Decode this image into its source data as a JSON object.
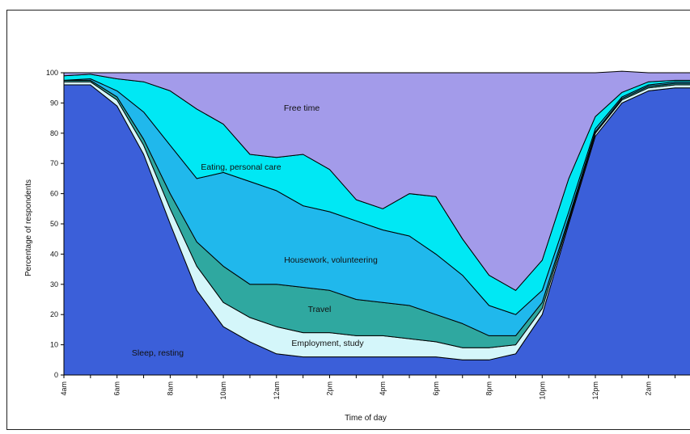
{
  "chart_data": {
    "type": "area",
    "stacked": true,
    "xlabel": "Time of day",
    "ylabel": "Percentage of respondents",
    "ylim": [
      0,
      100
    ],
    "yticks": [
      0,
      10,
      20,
      30,
      40,
      50,
      60,
      70,
      80,
      90,
      100
    ],
    "x_hours": [
      "4am",
      "5am",
      "6am",
      "7am",
      "8am",
      "9am",
      "10am",
      "11am",
      "12am",
      "1pm",
      "2pm",
      "3pm",
      "4pm",
      "5pm",
      "6pm",
      "7pm",
      "8pm",
      "9pm",
      "10pm",
      "11pm",
      "12pm",
      "1am",
      "2am",
      "3am",
      "3:30am"
    ],
    "xtick_labels": [
      "4am",
      "6am",
      "8am",
      "10am",
      "12am",
      "2pm",
      "4pm",
      "6pm",
      "8pm",
      "10pm",
      "12pm",
      "2am"
    ],
    "series": [
      {
        "name": "Sleep, resting",
        "color": "#3b5fd9",
        "values": [
          96,
          96,
          89,
          73,
          50,
          28,
          16,
          11,
          7,
          6,
          6,
          6,
          6,
          6,
          6,
          5,
          5,
          7,
          20,
          50,
          79,
          90,
          94,
          95,
          95
        ]
      },
      {
        "name": "Employment, study",
        "color": "#d4f6fa",
        "values": [
          1,
          1,
          2,
          3,
          5,
          8,
          8,
          8,
          9,
          8,
          8,
          7,
          7,
          6,
          5,
          4,
          4,
          3,
          2,
          1,
          1,
          1,
          1,
          1,
          1
        ]
      },
      {
        "name": "Travel",
        "color": "#2fa8a0",
        "values": [
          0.5,
          0.5,
          1,
          2,
          5,
          8,
          12,
          11,
          14,
          15,
          14,
          12,
          11,
          11,
          9,
          8,
          4,
          3,
          2,
          1,
          0.5,
          0.5,
          0.5,
          0.5,
          0.5
        ]
      },
      {
        "name": "Housework, volunteering",
        "color": "#20b8ec",
        "values": [
          0,
          0.5,
          2,
          9,
          16,
          21,
          31,
          34,
          31,
          27,
          26,
          26,
          24,
          23,
          20,
          16,
          10,
          7,
          4,
          2,
          1,
          0.5,
          0.5,
          0.5,
          0.5
        ]
      },
      {
        "name": "Eating, personal care",
        "color": "#00e8f4",
        "values": [
          1.5,
          1.5,
          4,
          10,
          18,
          23,
          16,
          9,
          11,
          17,
          14,
          7,
          7,
          14,
          19,
          12,
          10,
          8,
          10,
          11,
          4,
          1.5,
          1,
          0.5,
          0.5
        ]
      },
      {
        "name": "Free time",
        "color": "#a39bea",
        "values": [
          1,
          0.5,
          2,
          3,
          6,
          12,
          17,
          27,
          28,
          27,
          32,
          42,
          45,
          40,
          41,
          55,
          67,
          72,
          62,
          35,
          14.5,
          7,
          3,
          2.5,
          2.5
        ]
      }
    ]
  }
}
